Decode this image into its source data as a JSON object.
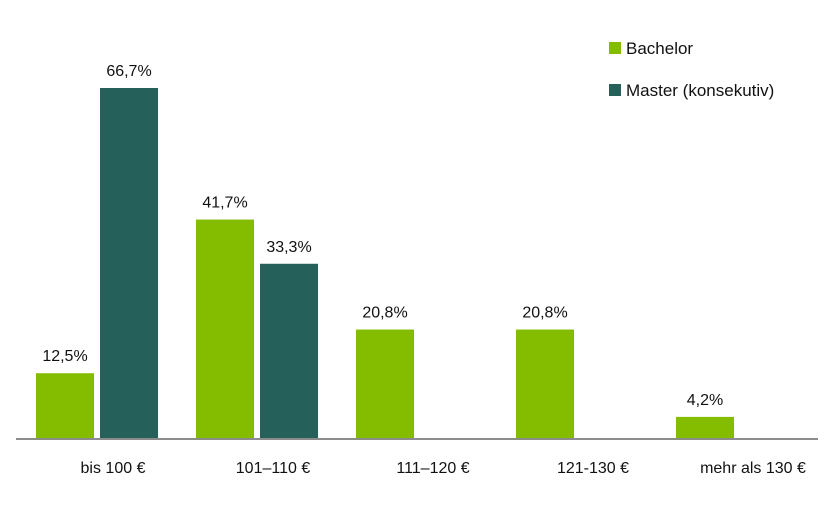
{
  "chart_data": {
    "type": "bar",
    "title": "",
    "xlabel": "",
    "ylabel": "",
    "ylim": [
      0,
      66.7
    ],
    "grid": false,
    "legend_position": "top-right",
    "categories": [
      "bis 100 €",
      "101–110 €",
      "111–120 €",
      "121-130 €",
      "mehr als 130 €"
    ],
    "series": [
      {
        "name": "Bachelor",
        "color": "#84BC00",
        "values": [
          12.5,
          41.7,
          20.8,
          20.8,
          4.2
        ],
        "labels": [
          "12,5%",
          "41,7%",
          "20,8%",
          "20,8%",
          "4,2%"
        ]
      },
      {
        "name": "Master (konsekutiv)",
        "color": "#25615A",
        "values": [
          66.7,
          33.3,
          null,
          null,
          null
        ],
        "labels": [
          "66,7%",
          "33,3%",
          null,
          null,
          null
        ]
      }
    ]
  },
  "colors": {
    "axis": "#8C8C8C",
    "text": "#111111"
  }
}
